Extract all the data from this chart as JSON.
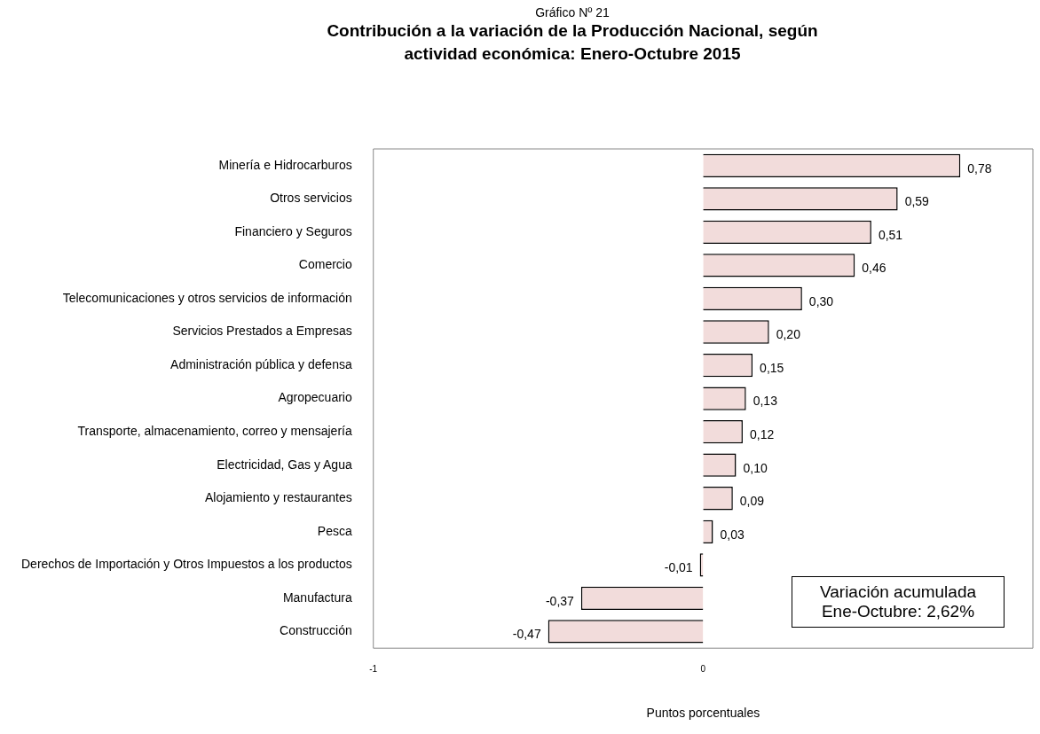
{
  "chart_data": {
    "type": "bar",
    "orientation": "horizontal",
    "subtitle": "Gráfico Nº  21",
    "title": "Contribución a la variación de la Producción Nacional, según actividad económica: Enero-Octubre 2015",
    "xlabel": "Puntos porcentuales",
    "categories": [
      "Minería e Hidrocarburos",
      "Otros servicios",
      "Financiero y Seguros",
      "Comercio",
      "Telecomunicaciones y otros servicios de información",
      "Servicios Prestados a Empresas",
      "Administración pública y defensa",
      "Agropecuario",
      "Transporte, almacenamiento, correo y mensajería",
      "Electricidad, Gas y Agua",
      "Alojamiento y restaurantes",
      "Pesca",
      "Derechos de Importación y Otros Impuestos a los productos",
      "Manufactura",
      "Construcción"
    ],
    "values": [
      0.78,
      0.59,
      0.51,
      0.46,
      0.3,
      0.2,
      0.15,
      0.13,
      0.12,
      0.1,
      0.09,
      0.03,
      -0.01,
      -0.37,
      -0.47
    ],
    "value_labels": [
      "0,78",
      "0,59",
      "0,51",
      "0,46",
      "0,30",
      "0,20",
      "0,15",
      "0,13",
      "0,12",
      "0,10",
      "0,09",
      "0,03",
      "-0,01",
      "-0,37",
      "-0,47"
    ],
    "color": "#f2dcdb",
    "xlim": [
      -1,
      1
    ],
    "xticks": [
      -1,
      0
    ],
    "grid": false,
    "legend": false,
    "annotations": [
      "Variación acumulada\nEne-Octubre: 2,62%"
    ]
  }
}
